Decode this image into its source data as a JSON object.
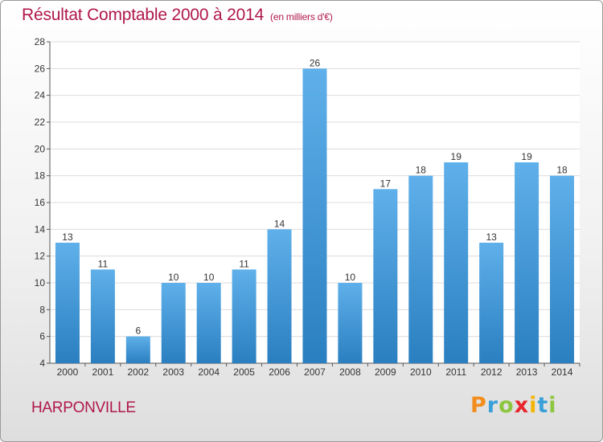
{
  "chart_data": {
    "type": "bar",
    "title": "Résultat Comptable 2000 à 2014",
    "subtitle": "(en milliers d'€)",
    "categories": [
      "2000",
      "2001",
      "2002",
      "2003",
      "2004",
      "2005",
      "2006",
      "2007",
      "2008",
      "2009",
      "2010",
      "2011",
      "2012",
      "2013",
      "2014"
    ],
    "values": [
      13,
      11,
      6,
      10,
      10,
      11,
      14,
      26,
      10,
      17,
      18,
      19,
      13,
      19,
      18
    ],
    "ylim": [
      4,
      28
    ],
    "yticks": [
      4,
      6,
      8,
      10,
      12,
      14,
      16,
      18,
      20,
      22,
      24,
      26,
      28
    ],
    "xlabel": "",
    "ylabel": "",
    "grid": true,
    "bar_color_light": "#5fb0ea",
    "bar_color_dark": "#2a7fc0"
  },
  "place_name": "HARPONVILLE",
  "logo": {
    "text": "Proxiti",
    "letters": [
      "P",
      "r",
      "o",
      "x",
      "i",
      "t",
      "i"
    ],
    "colors": [
      "#f28c1c",
      "#3aa0d8",
      "#8dc63f",
      "#e8262d",
      "#f4b400",
      "#3aa0d8",
      "#8dc63f"
    ]
  },
  "colors": {
    "accent": "#b0184b",
    "grid": "#dcdcdc",
    "axis": "#555555"
  }
}
